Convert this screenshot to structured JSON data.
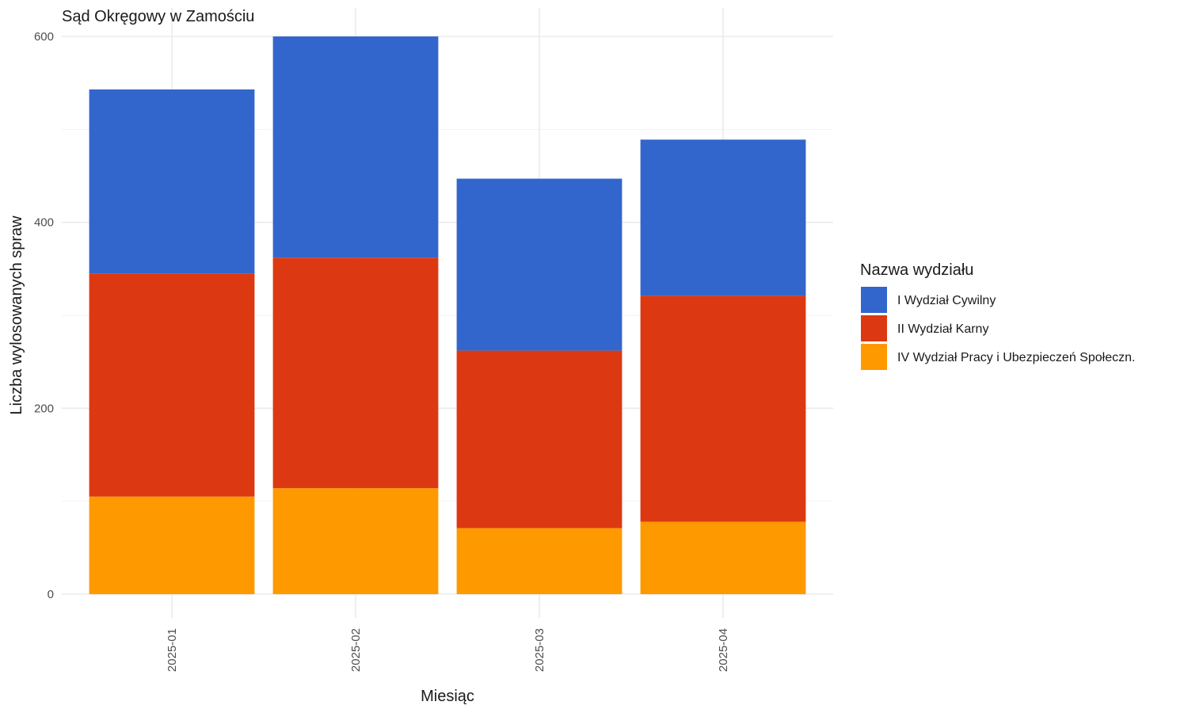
{
  "chart_data": {
    "type": "bar",
    "stacked": true,
    "title": "Sąd Okręgowy w Zamościu",
    "xlabel": "Miesiąc",
    "ylabel": "Liczba wylosowanych spraw",
    "categories": [
      "2025-01",
      "2025-02",
      "2025-03",
      "2025-04"
    ],
    "series": [
      {
        "name": "IV Wydział Pracy i Ubezpieczeń Społeczn.",
        "color": "#ff9900",
        "values": [
          105,
          114,
          71,
          78
        ]
      },
      {
        "name": "II Wydział Karny",
        "color": "#dc3912",
        "values": [
          240,
          248,
          191,
          243
        ]
      },
      {
        "name": "I Wydział Cywilny",
        "color": "#3366cc",
        "values": [
          198,
          238,
          185,
          168
        ]
      }
    ],
    "legend": {
      "title": "Nazwa wydziału",
      "position": "right",
      "order": [
        "I Wydział Cywilny",
        "II Wydział Karny",
        "IV Wydział Pracy i Ubezpieczeń Społeczn."
      ]
    },
    "ylim": [
      0,
      600
    ],
    "yticks": [
      0,
      200,
      400,
      600
    ],
    "grid": true
  }
}
